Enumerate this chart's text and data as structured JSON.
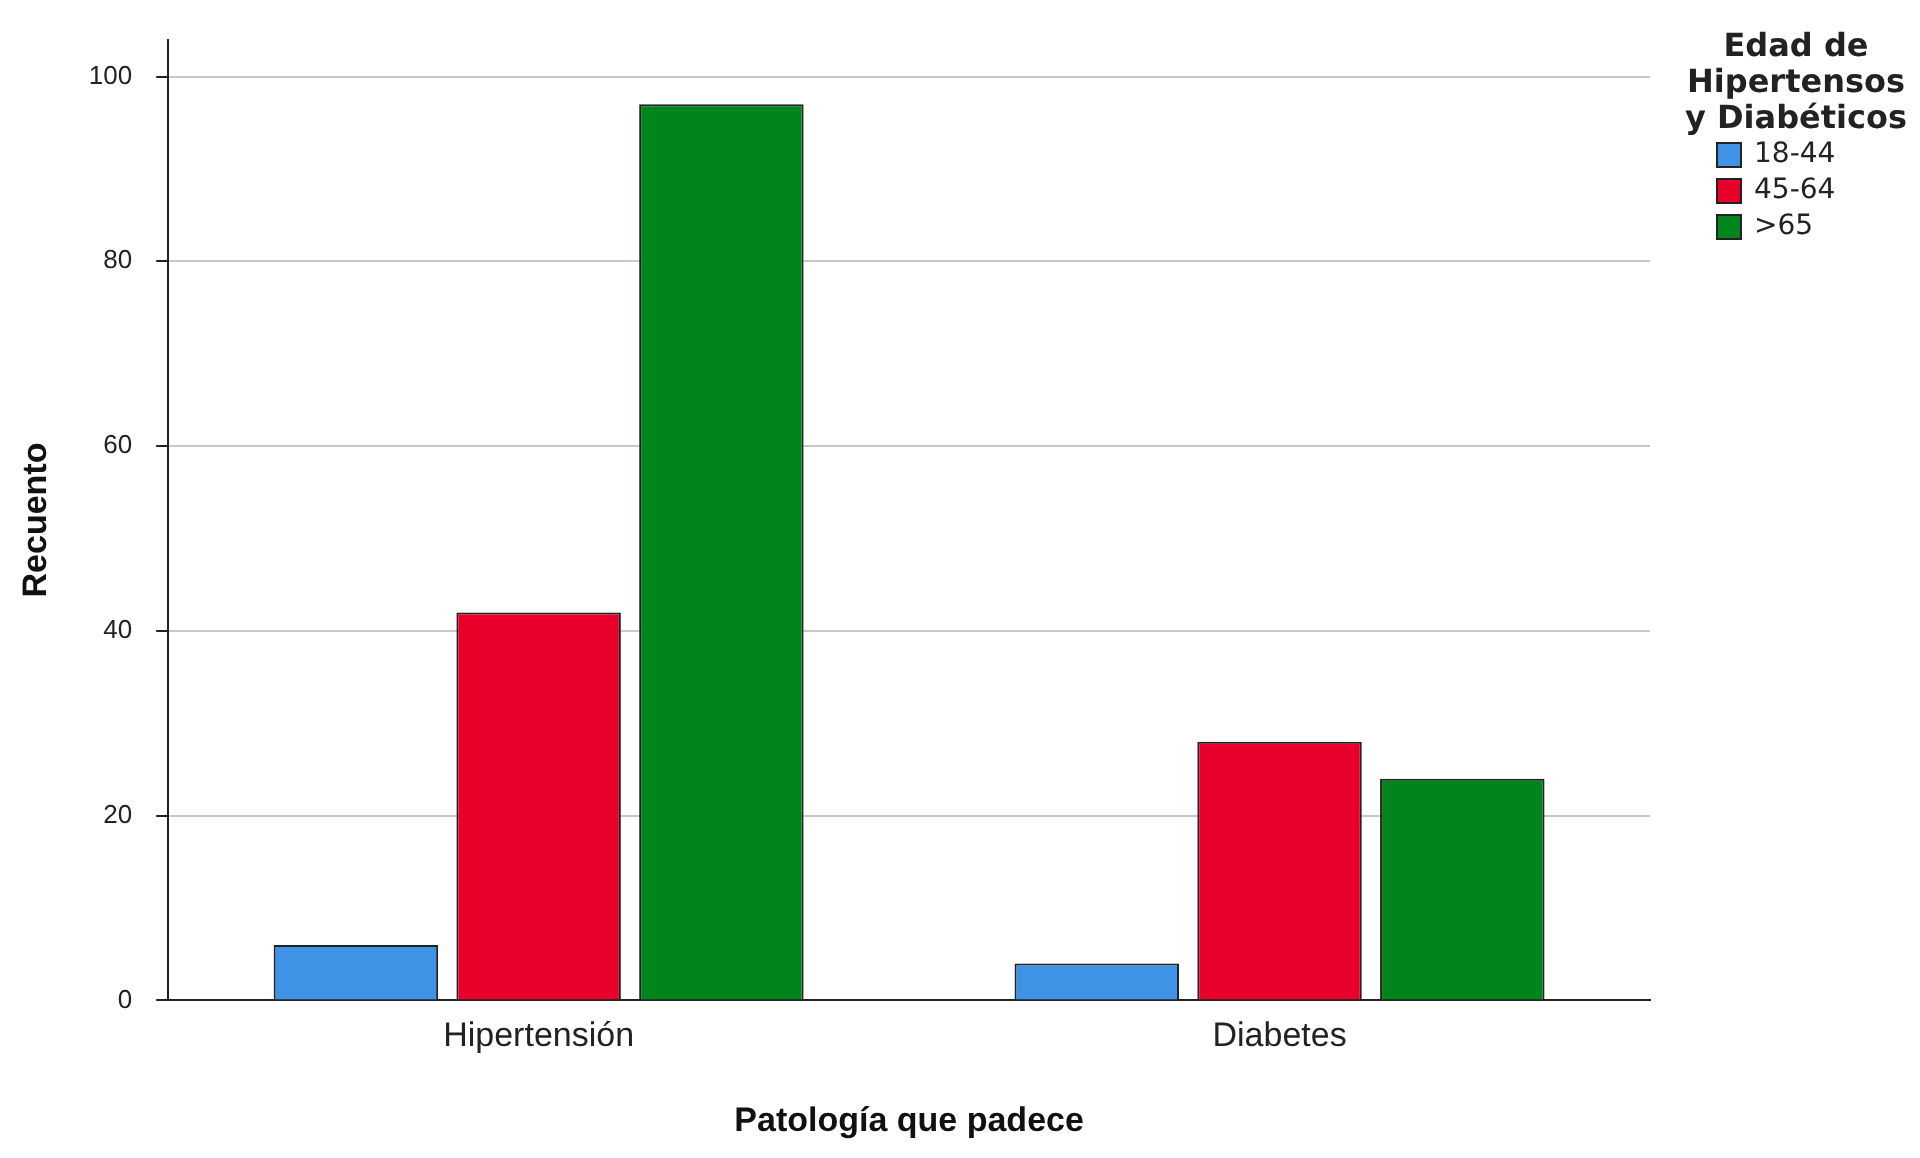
{
  "chart_data": {
    "type": "bar",
    "xlabel": "Patología que padece",
    "ylabel": "Recuento",
    "legend_title": "Edad de Hipertensos y Diabéticos",
    "categories": [
      "Hipertensión",
      "Diabetes"
    ],
    "series": [
      {
        "name": "18-44",
        "color": "#3f93e6",
        "values": [
          6,
          4
        ]
      },
      {
        "name": "45-64",
        "color": "#e8002a",
        "values": [
          42,
          28
        ]
      },
      {
        "name": ">65",
        "color": "#00841c",
        "values": [
          97,
          24
        ]
      }
    ],
    "ylim": [
      0,
      104
    ],
    "yticks": [
      0,
      20,
      40,
      60,
      80,
      100
    ],
    "grid": "y",
    "legend": "top right"
  }
}
